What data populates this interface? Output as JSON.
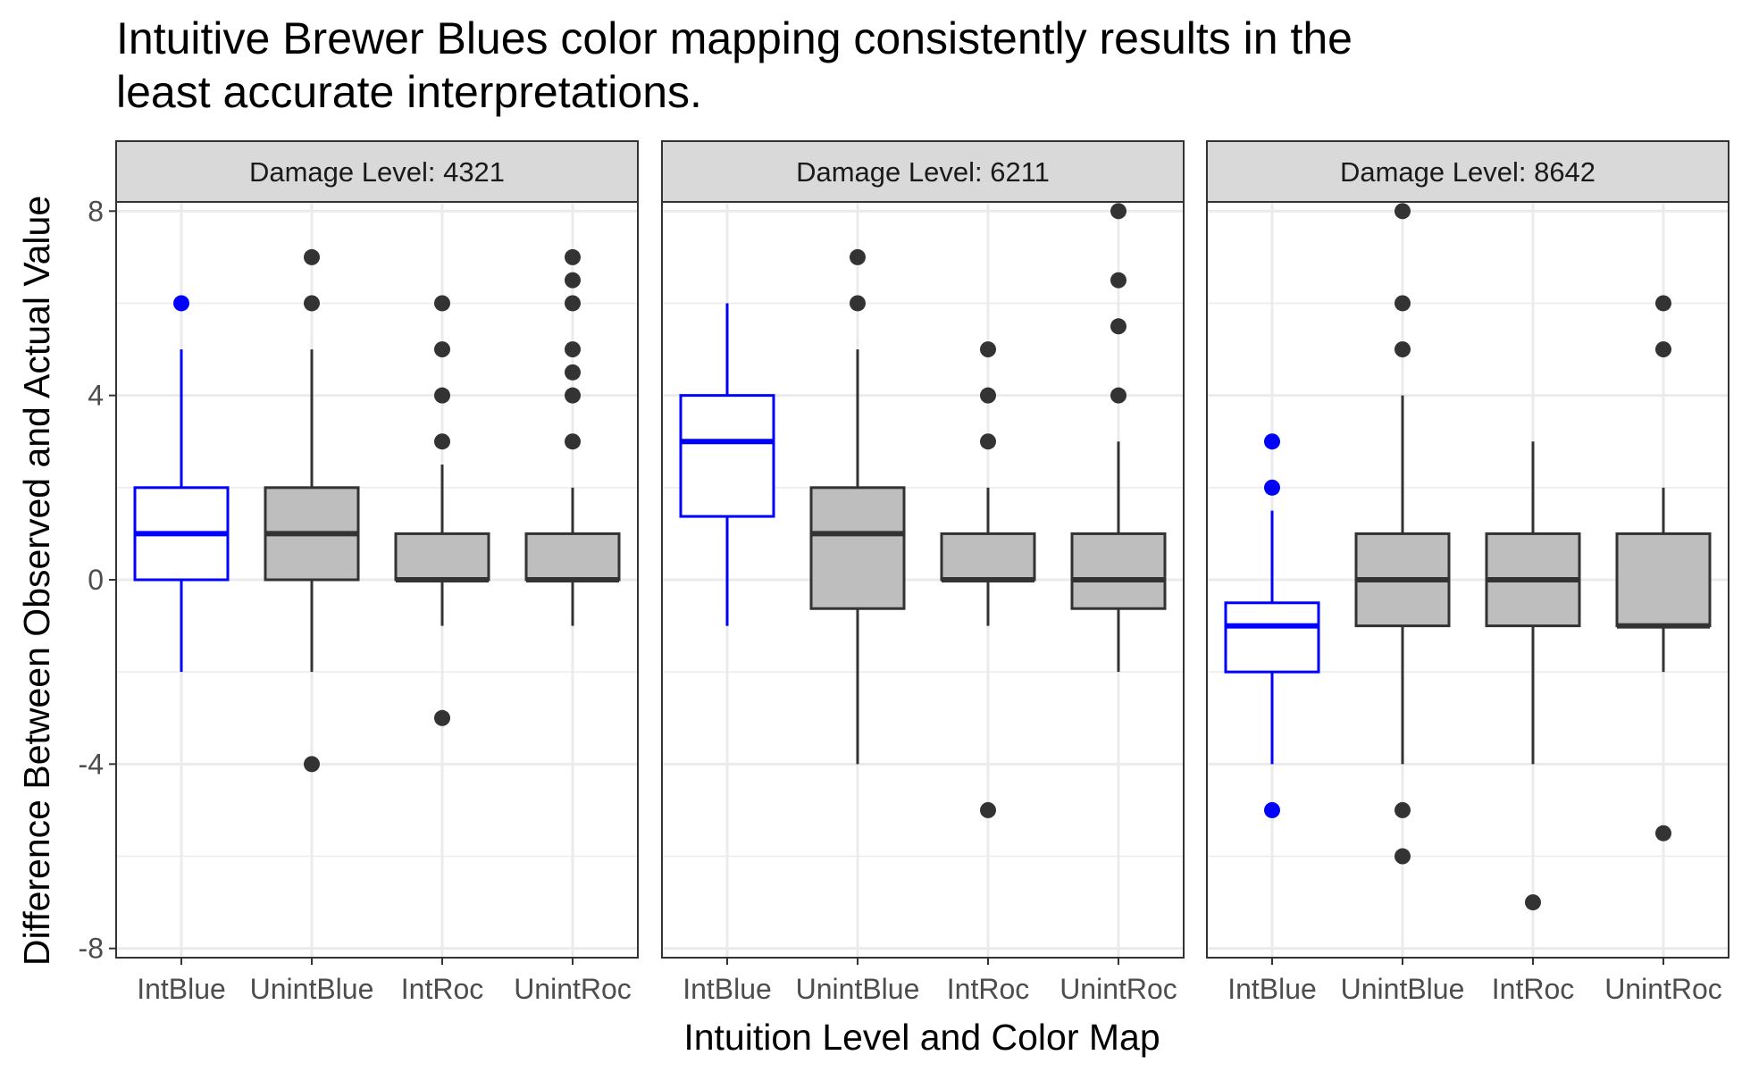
{
  "chart_data": {
    "type": "box",
    "title": "Intuitive Brewer Blues color mapping consistently results in the least accurate interpretations.",
    "title_lines": [
      "Intuitive Brewer Blues color mapping consistently results in the",
      "least accurate interpretations."
    ],
    "xlabel": "Intuition Level and Color Map",
    "ylabel": "Difference Between Observed and Actual Value",
    "categories": [
      "IntBlue",
      "UnintBlue",
      "IntRoc",
      "UnintRoc"
    ],
    "ylim": [
      -8.2,
      8.2
    ],
    "yticks": [
      -8,
      -4,
      0,
      4,
      8
    ],
    "ytick_labels": [
      "-8",
      "-4",
      "0",
      "4",
      "8"
    ],
    "grid": true,
    "colors": {
      "highlight_stroke": "#0000ff",
      "highlight_fill": "#ffffff",
      "default_stroke": "#333333",
      "default_fill": "#bebebe",
      "strip_fill": "#d9d9d9",
      "grid": "#ebebeb",
      "panel_border": "#333333"
    },
    "panels": [
      {
        "strip_label": "Damage Level: 4321",
        "boxes": [
          {
            "category": "IntBlue",
            "highlight": true,
            "whisker_low": -2,
            "q1": 0,
            "median": 1,
            "q3": 2,
            "whisker_high": 5,
            "outliers": [
              6
            ]
          },
          {
            "category": "UnintBlue",
            "highlight": false,
            "whisker_low": -2,
            "q1": 0,
            "median": 1,
            "q3": 2,
            "whisker_high": 5,
            "outliers": [
              6,
              7,
              -4
            ]
          },
          {
            "category": "IntRoc",
            "highlight": false,
            "whisker_low": -1,
            "q1": 0,
            "median": 0,
            "q3": 1,
            "whisker_high": 2.5,
            "outliers": [
              3,
              4,
              5,
              6,
              -3
            ]
          },
          {
            "category": "UnintRoc",
            "highlight": false,
            "whisker_low": -1,
            "q1": 0,
            "median": 0,
            "q3": 1,
            "whisker_high": 2,
            "outliers": [
              3,
              4,
              4.5,
              5,
              6,
              6.5,
              7
            ]
          }
        ]
      },
      {
        "strip_label": "Damage Level: 6211",
        "boxes": [
          {
            "category": "IntBlue",
            "highlight": true,
            "whisker_low": -1,
            "q1": 1.375,
            "median": 3,
            "q3": 4,
            "whisker_high": 6,
            "outliers": []
          },
          {
            "category": "UnintBlue",
            "highlight": false,
            "whisker_low": -4,
            "q1": -0.625,
            "median": 1,
            "q3": 2,
            "whisker_high": 5,
            "outliers": [
              6,
              7
            ]
          },
          {
            "category": "IntRoc",
            "highlight": false,
            "whisker_low": -1,
            "q1": 0,
            "median": 0,
            "q3": 1,
            "whisker_high": 2,
            "outliers": [
              3,
              4,
              5,
              -5
            ]
          },
          {
            "category": "UnintRoc",
            "highlight": false,
            "whisker_low": -2,
            "q1": -0.625,
            "median": 0,
            "q3": 1,
            "whisker_high": 3,
            "outliers": [
              4,
              5.5,
              6.5,
              8
            ]
          }
        ]
      },
      {
        "strip_label": "Damage Level: 8642",
        "boxes": [
          {
            "category": "IntBlue",
            "highlight": true,
            "whisker_low": -4,
            "q1": -2,
            "median": -1,
            "q3": -0.5,
            "whisker_high": 1.5,
            "outliers": [
              2,
              3,
              -5
            ]
          },
          {
            "category": "UnintBlue",
            "highlight": false,
            "whisker_low": -4,
            "q1": -1,
            "median": 0,
            "q3": 1,
            "whisker_high": 4,
            "outliers": [
              5,
              6,
              8,
              -5,
              -6
            ]
          },
          {
            "category": "IntRoc",
            "highlight": false,
            "whisker_low": -4,
            "q1": -1,
            "median": 0,
            "q3": 1,
            "whisker_high": 3,
            "outliers": [
              -7
            ]
          },
          {
            "category": "UnintRoc",
            "highlight": false,
            "whisker_low": -2,
            "q1": -1,
            "median": -1,
            "q3": 1,
            "whisker_high": 2,
            "outliers": [
              5,
              6,
              -5.5
            ]
          }
        ]
      }
    ]
  }
}
